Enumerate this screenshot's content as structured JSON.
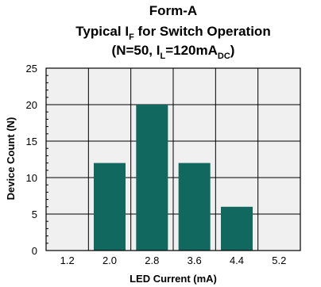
{
  "chart_data": {
    "type": "bar",
    "title": {
      "line1": "Form-A",
      "line2_a": "Typical I",
      "line2_sub": "F",
      "line2_b": " for Switch Operation",
      "line3_a": "(N=50, I",
      "line3_sub1": "L",
      "line3_b": "=120mA",
      "line3_sub2": "DC",
      "line3_c": ")"
    },
    "xlabel": "LED Current (mA)",
    "ylabel": "Device Count (N)",
    "categories": [
      "1.2",
      "2.0",
      "2.8",
      "3.6",
      "4.4",
      "5.2"
    ],
    "values": [
      0,
      12,
      20,
      12,
      6,
      0
    ],
    "ylim": [
      0,
      25
    ],
    "yticks": [
      "0",
      "5",
      "10",
      "15",
      "20",
      "25"
    ],
    "grid": true,
    "colors": {
      "bar": "#10685e",
      "plot_bg": "#f0f0f0",
      "grid": "#000000"
    }
  }
}
